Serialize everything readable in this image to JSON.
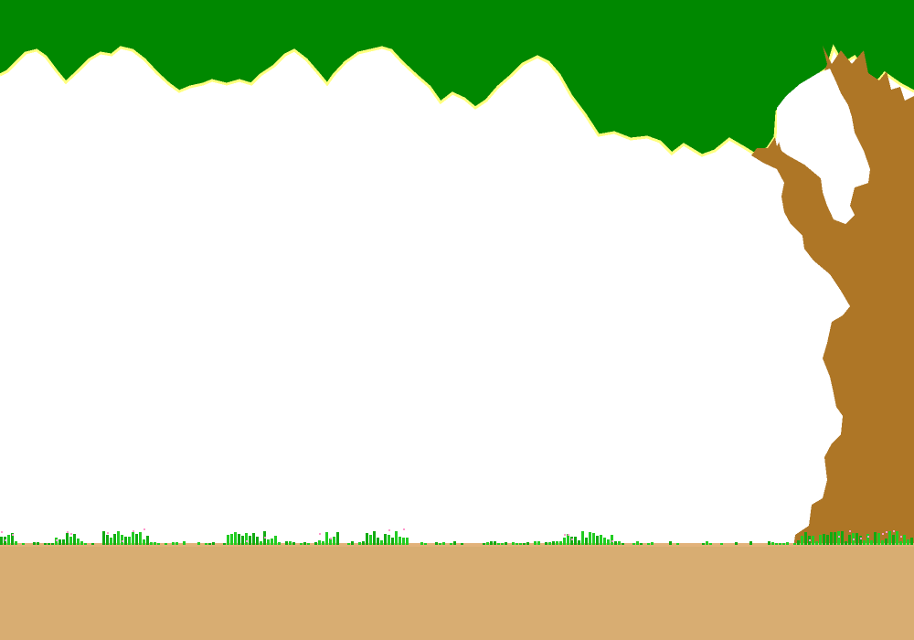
{
  "scene": {
    "name": "forest-clearing-background",
    "colors": {
      "sky": "#ffffff",
      "canopy": "#008800",
      "canopy_highlight": "#ffff80",
      "trunk": "#ae7626",
      "trunk_hole": "#ffffff",
      "ground": "#d8ad72",
      "ground_edge": "#e2b27a",
      "grass": "#22cc22",
      "grass_dark": "#11aa11",
      "flower": "#ff99cc"
    },
    "elements": [
      {
        "key": "sky",
        "icon": "sky-area"
      },
      {
        "key": "canopy",
        "icon": "tree-canopy-icon"
      },
      {
        "key": "trunk",
        "icon": "tree-trunk-icon"
      },
      {
        "key": "ground",
        "icon": "dirt-ground"
      },
      {
        "key": "grass",
        "icon": "grass-tufts-icon"
      },
      {
        "key": "flowers",
        "icon": "flower-dots-icon"
      }
    ]
  }
}
